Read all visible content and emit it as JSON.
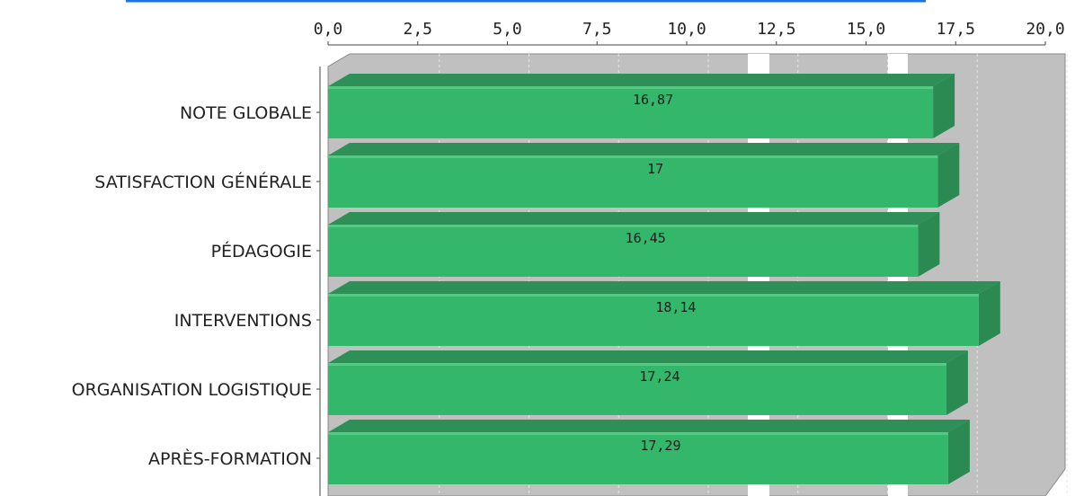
{
  "colors": {
    "bar_front": "#33b86b",
    "bar_top": "#2e8f57",
    "bar_side": "#2a8a52",
    "plot_bg": "#c0c0c0",
    "header_line": "#1a73e8"
  },
  "chart_data": {
    "type": "bar",
    "orientation": "horizontal",
    "style": "3d",
    "categories": [
      "NOTE GLOBALE",
      "SATISFACTION GÉNÉRALE",
      "PÉDAGOGIE",
      "INTERVENTIONS",
      "ORGANISATION LOGISTIQUE",
      "APRÈS-FORMATION"
    ],
    "values": [
      16.87,
      17,
      16.45,
      18.14,
      17.24,
      17.29
    ],
    "data_labels": [
      "16,87",
      "17",
      "16,45",
      "18,14",
      "17,24",
      "17,29"
    ],
    "xlim": [
      0,
      20
    ],
    "x_ticks": [
      0,
      2.5,
      5,
      7.5,
      10,
      12.5,
      15,
      17.5,
      20
    ],
    "x_tick_labels": [
      "0,0",
      "2,5",
      "5,0",
      "7,5",
      "10,0",
      "12,5",
      "15,0",
      "17,5",
      "20,0"
    ],
    "x_axis_position": "top",
    "grid": true
  }
}
